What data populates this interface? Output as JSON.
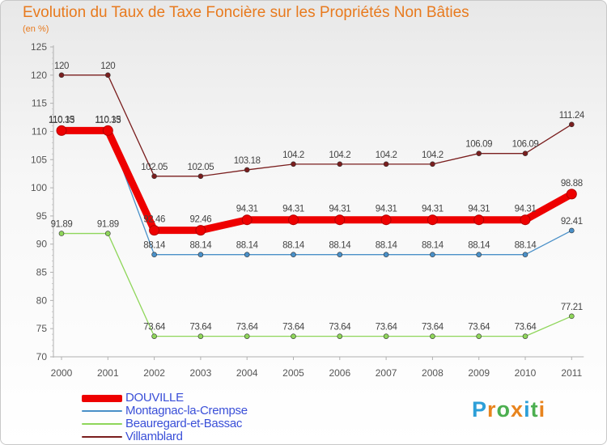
{
  "title": "Evolution du Taux de Taxe Foncière sur les Propriétés Non Bâties",
  "unit_label": "(en %)",
  "logo": [
    "P",
    "r",
    "o",
    "x",
    "i",
    "t",
    "i"
  ],
  "logo_colors": [
    "#2d9fd8",
    "#e8841e",
    "#4caf50",
    "#e8841e",
    "#2d9fd8",
    "#4caf50",
    "#e8841e"
  ],
  "chart_data": {
    "type": "line",
    "title": "Evolution du Taux de Taxe Foncière sur les Propriétés Non Bâties",
    "ylabel": "(en %)",
    "xlabel": "",
    "ylim": [
      70,
      125
    ],
    "yticks": [
      70,
      75,
      80,
      85,
      90,
      95,
      100,
      105,
      110,
      115,
      120,
      125
    ],
    "x": [
      "2000",
      "2001",
      "2002",
      "2003",
      "2004",
      "2005",
      "2006",
      "2007",
      "2008",
      "2009",
      "2010",
      "2011"
    ],
    "series": [
      {
        "name": "Villamblard",
        "color": "#7a1e1e",
        "values": [
          120,
          120,
          102.05,
          102.05,
          103.18,
          104.2,
          104.2,
          104.2,
          104.2,
          106.09,
          106.09,
          111.24
        ],
        "labels": [
          "120",
          "120",
          "102.05",
          "102.05",
          "103.18",
          "104.2",
          "104.2",
          "104.2",
          "104.2",
          "106.09",
          "106.09",
          "111.24"
        ]
      },
      {
        "name": "Beauregard-et-Bassac",
        "color": "#8fd65a",
        "values": [
          91.89,
          91.89,
          73.64,
          73.64,
          73.64,
          73.64,
          73.64,
          73.64,
          73.64,
          73.64,
          73.64,
          77.21
        ],
        "labels": [
          "91.89",
          "91.89",
          "73.64",
          "73.64",
          "73.64",
          "73.64",
          "73.64",
          "73.64",
          "73.64",
          "73.64",
          "73.64",
          "77.21"
        ]
      },
      {
        "name": "Montagnac-la-Crempse",
        "color": "#4a90c8",
        "values": [
          110.33,
          110.33,
          88.14,
          88.14,
          88.14,
          88.14,
          88.14,
          88.14,
          88.14,
          88.14,
          88.14,
          92.41
        ],
        "labels": [
          "110.33",
          "110.33",
          "88.14",
          "88.14",
          "88.14",
          "88.14",
          "88.14",
          "88.14",
          "88.14",
          "88.14",
          "88.14",
          "92.41"
        ]
      },
      {
        "name": "DOUVILLE",
        "color": "#ee0000",
        "values": [
          110.15,
          110.15,
          92.46,
          92.46,
          94.31,
          94.31,
          94.31,
          94.31,
          94.31,
          94.31,
          94.31,
          98.88
        ],
        "labels": [
          "110.15",
          "110.15",
          "92.46",
          "92.46",
          "94.31",
          "94.31",
          "94.31",
          "94.31",
          "94.31",
          "94.31",
          "94.31",
          "98.88"
        ]
      }
    ],
    "legend": [
      "DOUVILLE",
      "Montagnac-la-Crempse",
      "Beauregard-et-Bassac",
      "Villamblard"
    ],
    "legend_position": "bottom-left",
    "grid": false
  }
}
